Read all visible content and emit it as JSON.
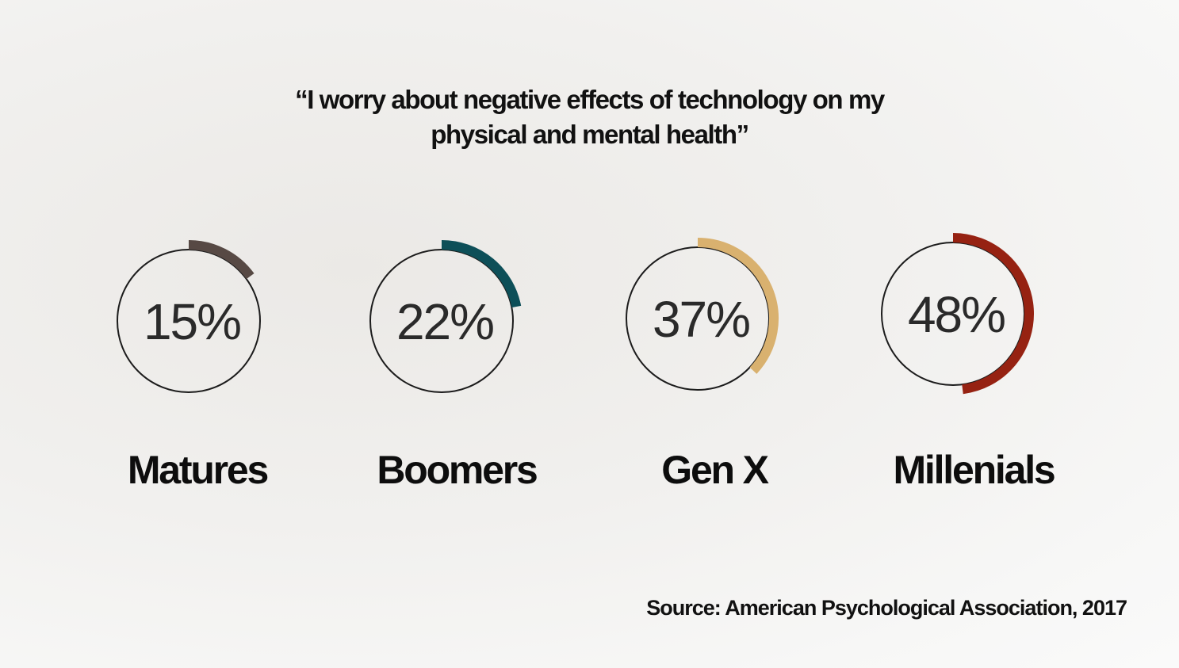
{
  "title_lines": [
    "“I worry about negative effects of technology on my",
    "physical and mental health”"
  ],
  "source": "Source: American Psychological Association, 2017",
  "chart_data": {
    "type": "pie",
    "title": "“I worry about negative effects of technology on my physical and mental health”",
    "categories": [
      "Matures",
      "Boomers",
      "Gen X",
      "Millenials"
    ],
    "values": [
      15,
      22,
      37,
      48
    ],
    "value_labels": [
      "15%",
      "22%",
      "37%",
      "48%"
    ],
    "unit": "%",
    "colors": [
      "#574944",
      "#0d4f58",
      "#d9b16f",
      "#962212"
    ],
    "ring_color": "#1c1c1c"
  }
}
